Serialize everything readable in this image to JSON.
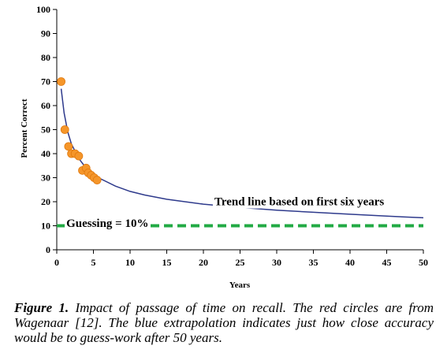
{
  "chart_data": {
    "type": "scatter",
    "xlabel": "Years",
    "ylabel": "Percent Correct",
    "xlim": [
      0,
      50
    ],
    "ylim": [
      0,
      100
    ],
    "x_ticks": [
      0,
      5,
      10,
      15,
      20,
      25,
      30,
      35,
      40,
      45,
      50
    ],
    "y_ticks": [
      0,
      10,
      20,
      30,
      40,
      50,
      60,
      70,
      80,
      90,
      100
    ],
    "grid": false,
    "legend": "none",
    "series": [
      {
        "kind": "points",
        "color": "#f5962a",
        "points": [
          {
            "x": 0.6,
            "y": 70
          },
          {
            "x": 1.1,
            "y": 50
          },
          {
            "x": 1.6,
            "y": 43
          },
          {
            "x": 2.0,
            "y": 40
          },
          {
            "x": 2.5,
            "y": 40
          },
          {
            "x": 3.0,
            "y": 39
          },
          {
            "x": 3.5,
            "y": 33
          },
          {
            "x": 4.0,
            "y": 34
          },
          {
            "x": 4.3,
            "y": 32
          },
          {
            "x": 4.7,
            "y": 31
          },
          {
            "x": 5.1,
            "y": 30
          },
          {
            "x": 5.5,
            "y": 29
          }
        ]
      },
      {
        "kind": "trend",
        "color": "#2e3a8c",
        "points": [
          {
            "x": 0.6,
            "y": 67
          },
          {
            "x": 1.0,
            "y": 57
          },
          {
            "x": 1.5,
            "y": 49
          },
          {
            "x": 2.0,
            "y": 44
          },
          {
            "x": 3.0,
            "y": 38
          },
          {
            "x": 4.0,
            "y": 34
          },
          {
            "x": 5.0,
            "y": 31.5
          },
          {
            "x": 6.0,
            "y": 29.5
          },
          {
            "x": 8.0,
            "y": 26.5
          },
          {
            "x": 10.0,
            "y": 24.3
          },
          {
            "x": 12.0,
            "y": 22.8
          },
          {
            "x": 15.0,
            "y": 21.0
          },
          {
            "x": 20.0,
            "y": 19.0
          },
          {
            "x": 25.0,
            "y": 17.6
          },
          {
            "x": 30.0,
            "y": 16.5
          },
          {
            "x": 35.0,
            "y": 15.6
          },
          {
            "x": 40.0,
            "y": 14.8
          },
          {
            "x": 45.0,
            "y": 14.0
          },
          {
            "x": 50.0,
            "y": 13.3
          }
        ]
      },
      {
        "kind": "reference",
        "color": "#22aa44",
        "y": 10
      }
    ],
    "annotations": [
      {
        "text": "Trend line based on first six years",
        "x": 21.5,
        "y": 18.5
      },
      {
        "text": "Guessing = 10%",
        "x": 1.3,
        "y": 9.5
      }
    ]
  },
  "caption": {
    "label": "Figure 1.",
    "text": "Impact of passage of time on recall. The red circles are from Wagenaar [12]. The blue extrapolation indicates just how close accuracy would be to guess-work after 50 years."
  }
}
